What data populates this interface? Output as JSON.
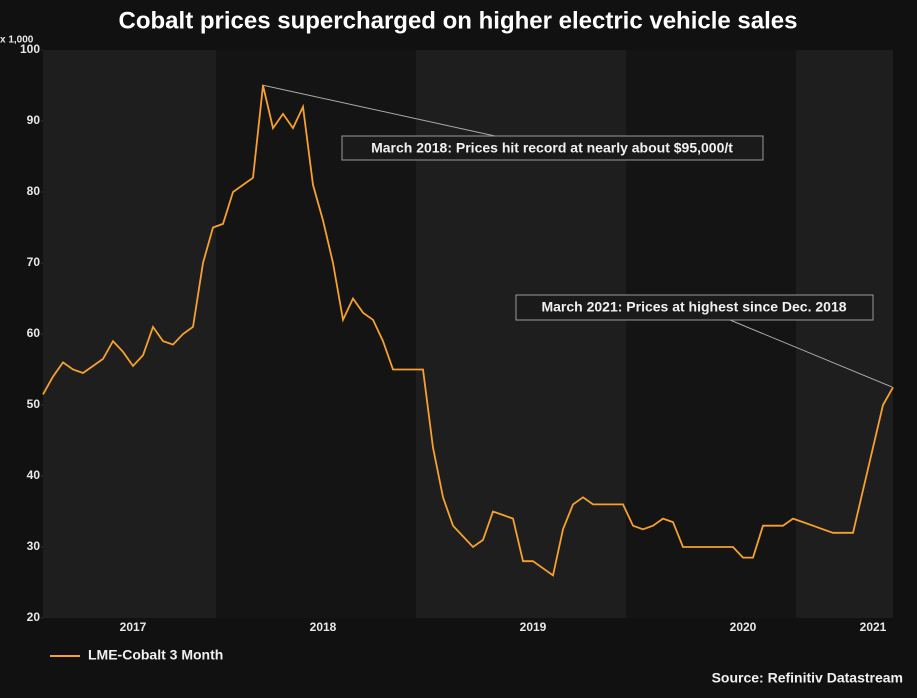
{
  "chart_data": {
    "type": "line",
    "title": "Cobalt prices supercharged on higher electric vehicle sales",
    "y_unit_label": "x 1,000",
    "source": "Source: Refinitiv Datastream",
    "annotations": [
      "March 2018: Prices hit record at nearly about $95,000/t",
      "March 2021: Prices at highest since Dec. 2018"
    ],
    "categories": [
      null,
      null,
      null,
      null,
      null,
      null,
      null,
      null,
      null,
      "2017",
      null,
      null,
      null,
      null,
      null,
      null,
      null,
      null,
      null,
      null,
      null,
      null,
      null,
      null,
      null,
      null,
      null,
      null,
      "2018",
      null,
      null,
      null,
      null,
      null,
      null,
      null,
      null,
      null,
      null,
      null,
      null,
      null,
      null,
      null,
      null,
      null,
      null,
      null,
      null,
      "2019",
      null,
      null,
      null,
      null,
      null,
      null,
      null,
      null,
      null,
      null,
      null,
      null,
      null,
      null,
      null,
      null,
      null,
      null,
      null,
      null,
      "2020",
      null,
      null,
      null,
      null,
      null,
      null,
      null,
      null,
      null,
      null,
      null,
      null,
      "2021",
      null,
      null
    ],
    "series": [
      {
        "name": "LME-Cobalt 3 Month",
        "color": "#f5a030",
        "values": [
          51.5,
          54,
          56,
          55,
          54.5,
          55.5,
          56.5,
          59,
          57.5,
          55.5,
          57,
          61,
          59,
          58.5,
          60,
          61,
          70,
          75,
          75.5,
          80,
          81,
          82,
          95,
          89,
          91,
          89,
          92,
          81,
          76,
          70,
          62,
          65,
          63,
          62,
          59,
          55,
          55,
          55,
          55,
          44,
          37,
          33,
          31.5,
          30,
          31,
          35,
          34.5,
          34,
          28,
          28,
          27,
          26,
          32.5,
          36,
          37,
          36,
          36,
          36,
          36,
          33,
          32.5,
          33,
          34,
          33.5,
          30,
          30,
          30,
          30,
          30,
          30,
          28.5,
          28.5,
          33,
          33,
          33,
          34,
          33.5,
          33,
          32.5,
          32,
          32,
          32,
          38,
          44,
          50,
          52.5
        ]
      }
    ],
    "ylim": [
      20,
      100
    ],
    "yticks": [
      20,
      30,
      40,
      50,
      60,
      70,
      80,
      90,
      100
    ],
    "grid": false
  }
}
